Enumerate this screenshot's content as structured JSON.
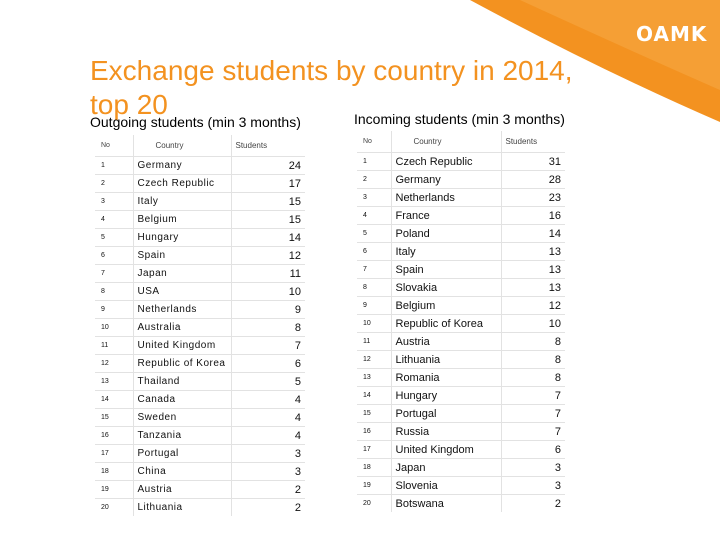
{
  "header": {
    "logo_text": "OAMK",
    "accent_color": "#f39220"
  },
  "slide": {
    "title": "Exchange students by country in 2014, top 20"
  },
  "outgoing": {
    "title": "Outgoing students (min 3 months)",
    "headers": {
      "no": "No",
      "country": "Country",
      "students": "Students"
    },
    "rows": [
      {
        "no": "1",
        "country": "Germany",
        "students": "24"
      },
      {
        "no": "2",
        "country": "Czech Republic",
        "students": "17"
      },
      {
        "no": "3",
        "country": "Italy",
        "students": "15"
      },
      {
        "no": "4",
        "country": "Belgium",
        "students": "15"
      },
      {
        "no": "5",
        "country": "Hungary",
        "students": "14"
      },
      {
        "no": "6",
        "country": "Spain",
        "students": "12"
      },
      {
        "no": "7",
        "country": "Japan",
        "students": "11"
      },
      {
        "no": "8",
        "country": "USA",
        "students": "10"
      },
      {
        "no": "9",
        "country": "Netherlands",
        "students": "9"
      },
      {
        "no": "10",
        "country": "Australia",
        "students": "8"
      },
      {
        "no": "11",
        "country": "United Kingdom",
        "students": "7"
      },
      {
        "no": "12",
        "country": "Republic of Korea",
        "students": "6"
      },
      {
        "no": "13",
        "country": "Thailand",
        "students": "5"
      },
      {
        "no": "14",
        "country": "Canada",
        "students": "4"
      },
      {
        "no": "15",
        "country": "Sweden",
        "students": "4"
      },
      {
        "no": "16",
        "country": "Tanzania",
        "students": "4"
      },
      {
        "no": "17",
        "country": "Portugal",
        "students": "3"
      },
      {
        "no": "18",
        "country": "China",
        "students": "3"
      },
      {
        "no": "19",
        "country": "Austria",
        "students": "2"
      },
      {
        "no": "20",
        "country": "Lithuania",
        "students": "2"
      }
    ]
  },
  "incoming": {
    "title": "Incoming students (min 3 months)",
    "headers": {
      "no": "No",
      "country": "Country",
      "students": "Students"
    },
    "rows": [
      {
        "no": "1",
        "country": "Czech Republic",
        "students": "31"
      },
      {
        "no": "2",
        "country": "Germany",
        "students": "28"
      },
      {
        "no": "3",
        "country": "Netherlands",
        "students": "23"
      },
      {
        "no": "4",
        "country": "France",
        "students": "16"
      },
      {
        "no": "5",
        "country": "Poland",
        "students": "14"
      },
      {
        "no": "6",
        "country": "Italy",
        "students": "13"
      },
      {
        "no": "7",
        "country": "Spain",
        "students": "13"
      },
      {
        "no": "8",
        "country": "Slovakia",
        "students": "13"
      },
      {
        "no": "9",
        "country": "Belgium",
        "students": "12"
      },
      {
        "no": "10",
        "country": "Republic of Korea",
        "students": "10"
      },
      {
        "no": "11",
        "country": "Austria",
        "students": "8"
      },
      {
        "no": "12",
        "country": "Lithuania",
        "students": "8"
      },
      {
        "no": "13",
        "country": "Romania",
        "students": "8"
      },
      {
        "no": "14",
        "country": "Hungary",
        "students": "7"
      },
      {
        "no": "15",
        "country": "Portugal",
        "students": "7"
      },
      {
        "no": "16",
        "country": "Russia",
        "students": "7"
      },
      {
        "no": "17",
        "country": "United Kingdom",
        "students": "6"
      },
      {
        "no": "18",
        "country": "Japan",
        "students": "3"
      },
      {
        "no": "19",
        "country": "Slovenia",
        "students": "3"
      },
      {
        "no": "20",
        "country": "Botswana",
        "students": "2"
      }
    ]
  }
}
